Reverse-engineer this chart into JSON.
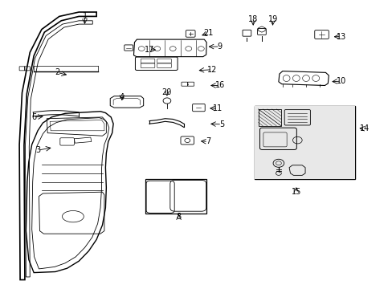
{
  "background_color": "#ffffff",
  "line_color": "#000000",
  "text_color": "#000000",
  "font_size": 7,
  "leaders": [
    [
      1,
      0.215,
      0.945,
      0.215,
      0.91
    ],
    [
      2,
      0.145,
      0.75,
      0.175,
      0.74
    ],
    [
      3,
      0.095,
      0.48,
      0.135,
      0.49
    ],
    [
      4,
      0.31,
      0.665,
      0.31,
      0.645
    ],
    [
      5,
      0.565,
      0.57,
      0.53,
      0.572
    ],
    [
      6,
      0.085,
      0.595,
      0.115,
      0.598
    ],
    [
      7,
      0.53,
      0.51,
      0.505,
      0.512
    ],
    [
      8,
      0.455,
      0.248,
      0.455,
      0.265
    ],
    [
      9,
      0.56,
      0.84,
      0.525,
      0.84
    ],
    [
      10,
      0.87,
      0.72,
      0.84,
      0.718
    ],
    [
      11,
      0.555,
      0.625,
      0.528,
      0.626
    ],
    [
      12,
      0.54,
      0.76,
      0.5,
      0.757
    ],
    [
      13,
      0.87,
      0.875,
      0.845,
      0.874
    ],
    [
      14,
      0.93,
      0.555,
      0.91,
      0.557
    ],
    [
      15,
      0.755,
      0.335,
      0.755,
      0.36
    ],
    [
      16,
      0.56,
      0.705,
      0.53,
      0.705
    ],
    [
      17,
      0.38,
      0.83,
      0.403,
      0.828
    ],
    [
      18,
      0.645,
      0.935,
      0.645,
      0.905
    ],
    [
      19,
      0.695,
      0.935,
      0.695,
      0.905
    ],
    [
      20,
      0.425,
      0.68,
      0.425,
      0.66
    ],
    [
      21,
      0.53,
      0.887,
      0.508,
      0.876
    ]
  ]
}
